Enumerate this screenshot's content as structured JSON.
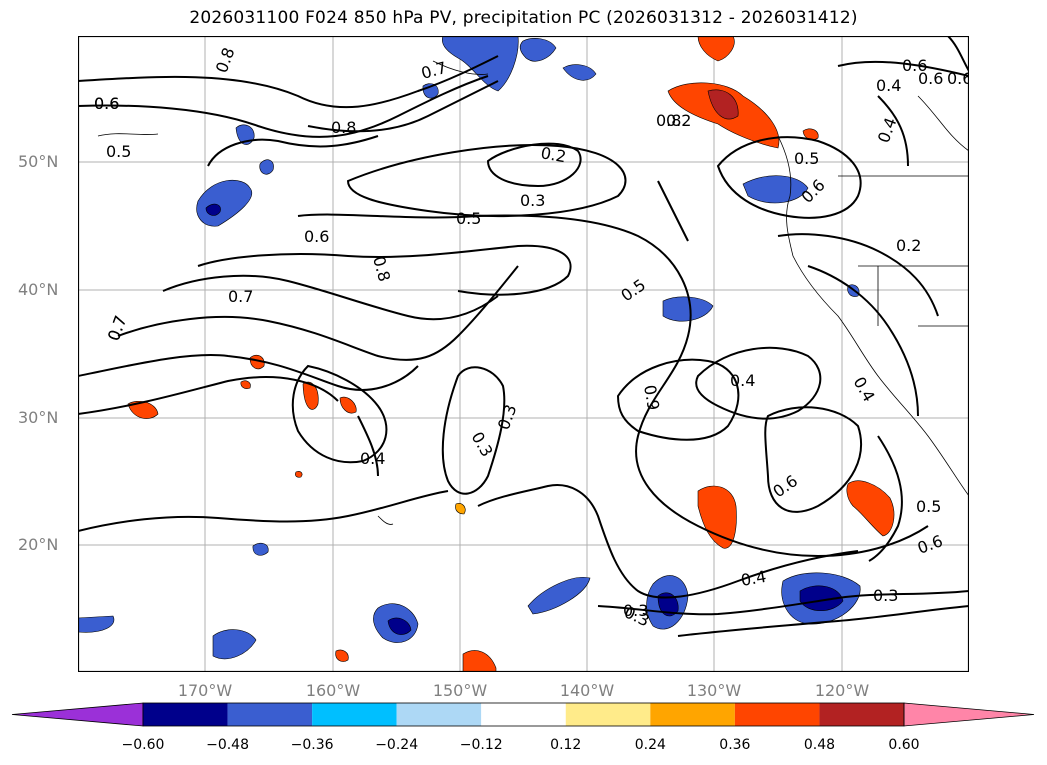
{
  "title": "2026031100 F024 850 hPa PV, precipitation PC (2026031312 - 2026031412)",
  "lat_labels": [
    "50°N",
    "40°N",
    "30°N",
    "20°N"
  ],
  "lon_labels": [
    "170°W",
    "160°W",
    "150°W",
    "140°W",
    "130°W",
    "120°W"
  ],
  "contour_labels": [
    "0.8",
    "0.6",
    "0.5",
    "0.8",
    "0.7",
    "0.7",
    "0.6",
    "0.6",
    "0.8",
    "0.7",
    "0.7",
    "0.4",
    "0.2",
    "0.3",
    "0.5",
    "0.3",
    "0.3",
    "0.5",
    "0.4",
    "0.9",
    "0.4",
    "0.6",
    "0.5",
    "0.6",
    "0.2",
    "0.8",
    "0.2",
    "0.6",
    "0.4",
    "0.5",
    "0.6",
    "0.4",
    "0.3",
    "0.3",
    "0.4",
    "0.6",
    "0.6",
    "0.3"
  ],
  "colorbar": {
    "ticks": [
      "−0.60",
      "−0.48",
      "−0.36",
      "−0.24",
      "−0.12",
      "0.12",
      "0.24",
      "0.36",
      "0.48",
      "0.60"
    ],
    "colors": [
      "#9b30d8",
      "#00008b",
      "#3a5ed0",
      "#00bfff",
      "#add8f5",
      "#ffffff",
      "#ffeb8a",
      "#ffa500",
      "#ff4500",
      "#b22222",
      "#ff85a8"
    ]
  },
  "colors": {
    "frame": "#000000",
    "grid": "#b0b0b0",
    "axis_text": "#808080"
  }
}
